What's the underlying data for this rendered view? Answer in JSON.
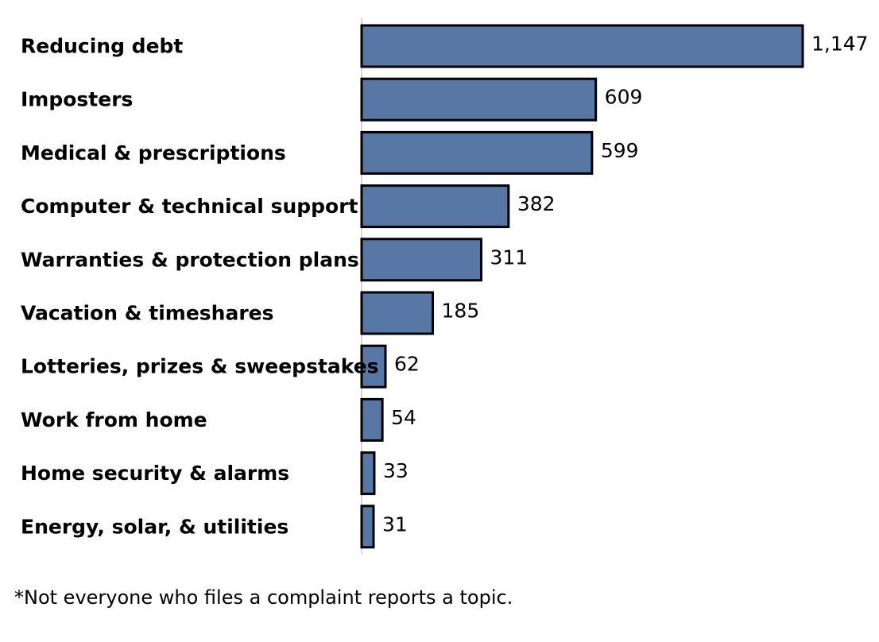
{
  "chart_data": {
    "type": "bar",
    "orientation": "horizontal",
    "categories": [
      "Reducing debt",
      "Imposters",
      "Medical & prescriptions",
      "Computer & technical support",
      "Warranties & protection plans",
      "Vacation & timeshares",
      "Lotteries, prizes & sweepstakes",
      "Work from home",
      "Home security & alarms",
      "Energy, solar, & utilities"
    ],
    "values": [
      1147,
      609,
      599,
      382,
      311,
      185,
      62,
      54,
      33,
      31
    ],
    "value_labels": [
      "1,147",
      "609",
      "599",
      "382",
      "311",
      "185",
      "62",
      "54",
      "33",
      "31"
    ],
    "title": "",
    "xlabel": "",
    "ylabel": "",
    "xlim": [
      0,
      1147
    ],
    "grid": false,
    "legend": "none",
    "bar_color": "#5778a4",
    "bar_edge_color": "#000000",
    "axis_color": "#c8c8c8"
  },
  "footnote": "*Not everyone who files a complaint reports a topic."
}
